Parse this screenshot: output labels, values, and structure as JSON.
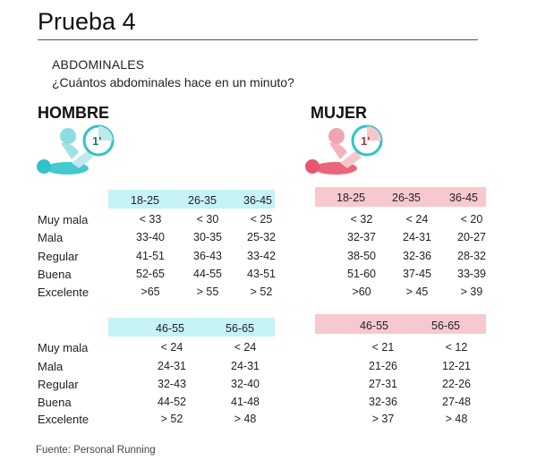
{
  "title": "Prueba 4",
  "subtitle_1": "ABDOMINALES",
  "subtitle_2": "¿Cuántos abdominales hace en un minuto?",
  "hombre": {
    "heading": "HOMBRE",
    "accent_color": "#2ec4c9",
    "timer_label": "1'",
    "table1": {
      "headers": [
        "18-25",
        "26-35",
        "36-45"
      ],
      "rows": [
        [
          "< 33",
          "< 30",
          "< 25"
        ],
        [
          "33-40",
          "30-35",
          "25-32"
        ],
        [
          "41-51",
          "36-43",
          "33-42"
        ],
        [
          "52-65",
          "44-55",
          "43-51"
        ],
        [
          ">65",
          "> 55",
          "> 52"
        ]
      ]
    },
    "table2": {
      "headers": [
        "46-55",
        "56-65"
      ],
      "rows": [
        [
          "< 24",
          "< 24"
        ],
        [
          "24-31",
          "24-31"
        ],
        [
          "32-43",
          "32-40"
        ],
        [
          "44-52",
          "41-48"
        ],
        [
          "> 52",
          "> 48"
        ]
      ]
    }
  },
  "mujer": {
    "heading": "MUJER",
    "accent_color": "#e8556c",
    "timer_label": "1'",
    "table1": {
      "headers": [
        "18-25",
        "26-35",
        "36-45"
      ],
      "rows": [
        [
          "< 32",
          "< 24",
          "< 20"
        ],
        [
          "32-37",
          "24-31",
          "20-27"
        ],
        [
          "38-50",
          "32-36",
          "28-32"
        ],
        [
          "51-60",
          "37-45",
          "33-39"
        ],
        [
          ">60",
          "> 45",
          "> 39"
        ]
      ]
    },
    "table2": {
      "headers": [
        "46-55",
        "56-65"
      ],
      "rows": [
        [
          "< 21",
          "< 12"
        ],
        [
          "21-26",
          "12-21"
        ],
        [
          "27-31",
          "22-26"
        ],
        [
          "32-36",
          "27-48"
        ],
        [
          "> 37",
          "> 48"
        ]
      ]
    }
  },
  "row_labels_1": [
    "Muy mala",
    "Mala",
    "Regular",
    "Buena",
    "Excelente"
  ],
  "row_labels_2": [
    "Muy mala",
    "Mala",
    "Regular",
    "Buena",
    "Excelente"
  ],
  "source": "Fuente: Personal Running"
}
